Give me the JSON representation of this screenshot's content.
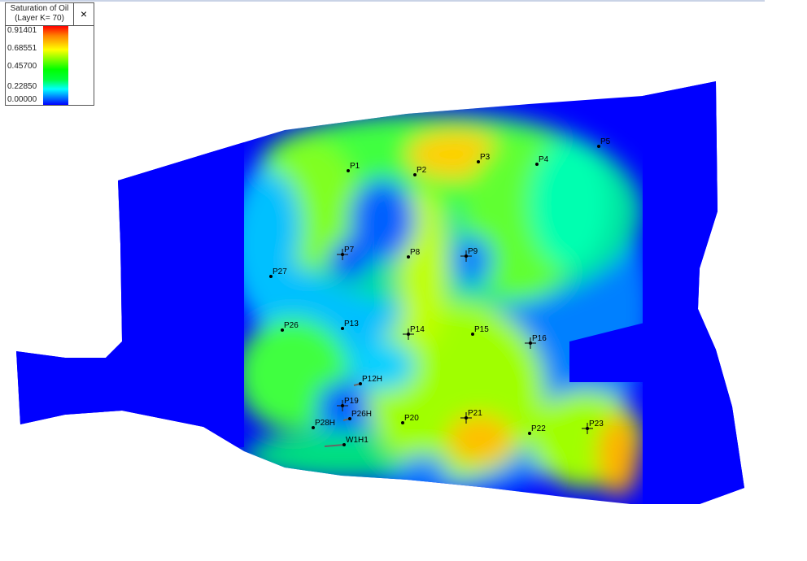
{
  "legend": {
    "title_line1": "Saturation of Oil",
    "title_line2": "(Layer K= 70)",
    "close_label": "×",
    "ticks": [
      "0.91401",
      "0.68551",
      "0.45700",
      "0.22850",
      "0.00000"
    ],
    "colormap": [
      "#ff0000",
      "#ffff00",
      "#00ff00",
      "#00ffff",
      "#0000ff"
    ]
  },
  "wells": [
    {
      "name": "P1",
      "type": "dot"
    },
    {
      "name": "P2",
      "type": "dot"
    },
    {
      "name": "P3",
      "type": "dot"
    },
    {
      "name": "P4",
      "type": "dot"
    },
    {
      "name": "P5",
      "type": "dot"
    },
    {
      "name": "P7",
      "type": "cross"
    },
    {
      "name": "P8",
      "type": "dot"
    },
    {
      "name": "P9",
      "type": "cross"
    },
    {
      "name": "P27",
      "type": "dot"
    },
    {
      "name": "P26",
      "type": "dot"
    },
    {
      "name": "P13",
      "type": "dot"
    },
    {
      "name": "P14",
      "type": "cross"
    },
    {
      "name": "P15",
      "type": "dot"
    },
    {
      "name": "P16",
      "type": "cross"
    },
    {
      "name": "P12H",
      "type": "horizontal"
    },
    {
      "name": "P19",
      "type": "cross"
    },
    {
      "name": "P26H",
      "type": "horizontal"
    },
    {
      "name": "P28H",
      "type": "dot"
    },
    {
      "name": "P20",
      "type": "dot"
    },
    {
      "name": "P21",
      "type": "cross"
    },
    {
      "name": "P22",
      "type": "dot"
    },
    {
      "name": "P23",
      "type": "cross"
    },
    {
      "name": "W1H1",
      "type": "horizontal"
    }
  ]
}
